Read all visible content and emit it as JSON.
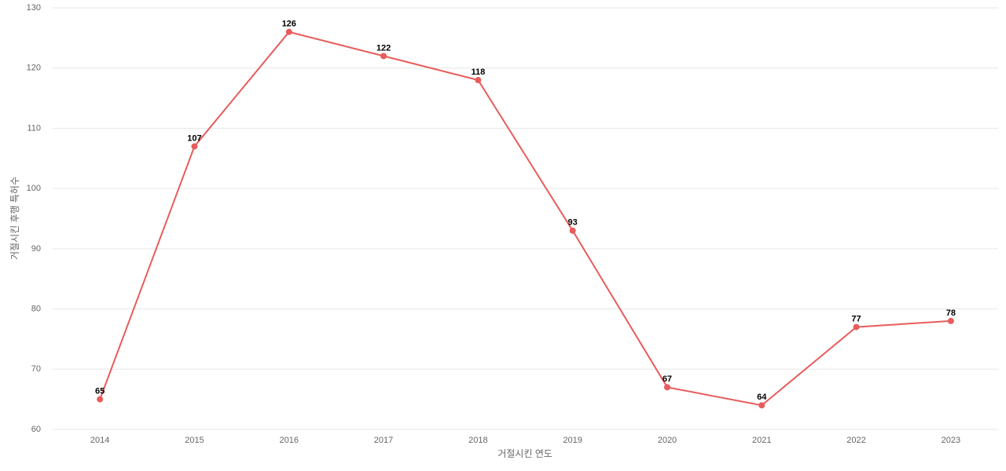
{
  "chart_data": {
    "type": "line",
    "x_label": "거절시킨 연도",
    "y_label": "거절시킨 후행 특허수",
    "categories": [
      "2014",
      "2015",
      "2016",
      "2017",
      "2018",
      "2019",
      "2020",
      "2021",
      "2022",
      "2023"
    ],
    "values": [
      65,
      107,
      126,
      122,
      118,
      93,
      67,
      64,
      77,
      78
    ],
    "color": "#e85c5c",
    "ylim": [
      60,
      130
    ],
    "yticks": [
      60,
      70,
      80,
      90,
      100,
      110,
      120,
      130
    ],
    "grid": true
  }
}
